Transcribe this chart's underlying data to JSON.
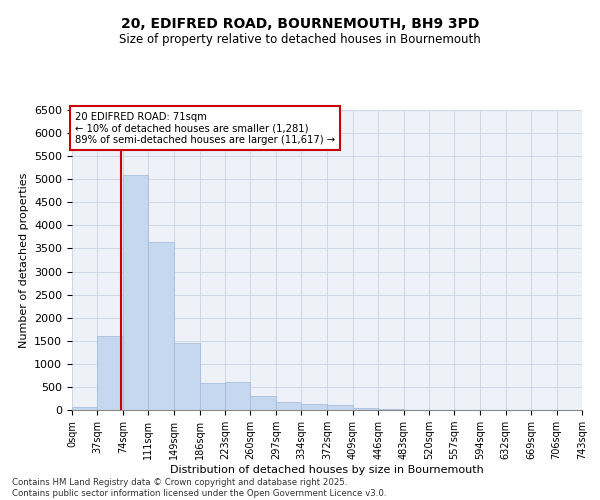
{
  "title_line1": "20, EDIFRED ROAD, BOURNEMOUTH, BH9 3PD",
  "title_line2": "Size of property relative to detached houses in Bournemouth",
  "xlabel": "Distribution of detached houses by size in Bournemouth",
  "ylabel": "Number of detached properties",
  "annotation_line1": "20 EDIFRED ROAD: 71sqm",
  "annotation_line2": "← 10% of detached houses are smaller (1,281)",
  "annotation_line3": "89% of semi-detached houses are larger (11,617) →",
  "property_size_sqm": 71,
  "bin_edges": [
    0,
    37,
    74,
    111,
    149,
    186,
    223,
    260,
    297,
    334,
    372,
    409,
    446,
    483,
    520,
    557,
    594,
    632,
    669,
    706,
    743
  ],
  "bar_values": [
    75,
    1600,
    5100,
    3650,
    1450,
    580,
    600,
    300,
    175,
    130,
    100,
    50,
    15,
    8,
    5,
    3,
    2,
    1,
    1,
    0
  ],
  "bar_color": "#c5d8f0",
  "bar_edge_color": "#a0b8d8",
  "redline_color": "#cc0000",
  "annotation_box_color": "#cc0000",
  "grid_color": "#d0d8e8",
  "background_color": "#eef2f8",
  "ylim": [
    0,
    6500
  ],
  "yticks": [
    0,
    500,
    1000,
    1500,
    2000,
    2500,
    3000,
    3500,
    4000,
    4500,
    5000,
    5500,
    6000,
    6500
  ],
  "footer_line1": "Contains HM Land Registry data © Crown copyright and database right 2025.",
  "footer_line2": "Contains public sector information licensed under the Open Government Licence v3.0."
}
